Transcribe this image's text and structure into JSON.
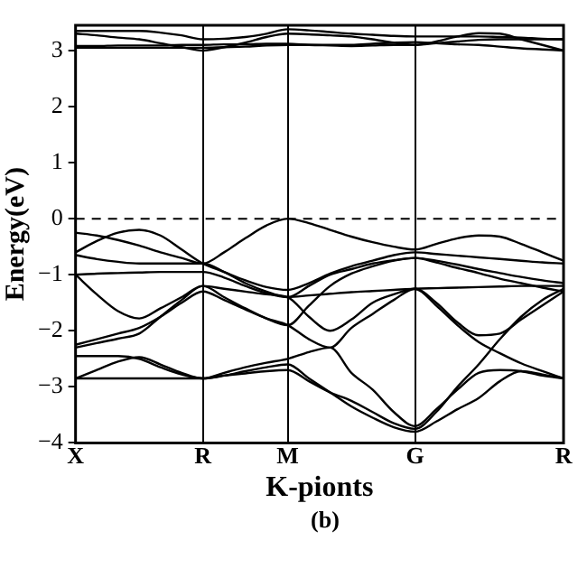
{
  "chart_data": {
    "type": "line",
    "xlabel": "K-pionts",
    "ylabel": "Energy(eV)",
    "annotations": [
      "(b)"
    ],
    "categories": [
      "X",
      null,
      null,
      null,
      null,
      null,
      "R",
      null,
      null,
      null,
      "M",
      null,
      null,
      null,
      null,
      null,
      "G",
      null,
      null,
      null,
      null,
      null,
      null,
      "R"
    ],
    "ylim": [
      -4,
      3.45
    ],
    "yticks": [
      -4,
      -3,
      -2,
      -1,
      0,
      1,
      2,
      3
    ],
    "grid": "x",
    "legend": false,
    "marker": "none",
    "line_style": "solid",
    "ref_lines": [
      {
        "axis": "y",
        "value": 0,
        "line_style": "dashed",
        "color": "#000000"
      }
    ],
    "series": [
      {
        "color": "#000000",
        "values": [
          3.35,
          3.35,
          3.35,
          3.35,
          3.32,
          3.27,
          3.2,
          3.21,
          3.24,
          3.3,
          3.38,
          3.36,
          3.33,
          3.3,
          3.28,
          3.26,
          3.25,
          3.25,
          3.25,
          3.25,
          3.24,
          3.23,
          3.21,
          3.2
        ]
      },
      {
        "color": "#000000",
        "values": [
          3.3,
          3.27,
          3.23,
          3.2,
          3.13,
          3.06,
          3.0,
          3.06,
          3.14,
          3.24,
          3.3,
          3.29,
          3.27,
          3.25,
          3.2,
          3.14,
          3.1,
          3.16,
          3.25,
          3.31,
          3.3,
          3.2,
          3.1,
          3.0
        ]
      },
      {
        "color": "#000000",
        "values": [
          3.08,
          3.08,
          3.09,
          3.09,
          3.09,
          3.1,
          3.1,
          3.11,
          3.11,
          3.12,
          3.12,
          3.1,
          3.09,
          3.08,
          3.09,
          3.1,
          3.1,
          3.13,
          3.16,
          3.19,
          3.2,
          3.2,
          3.2,
          3.2
        ]
      },
      {
        "color": "#000000",
        "values": [
          3.05,
          3.05,
          3.05,
          3.05,
          3.05,
          3.05,
          3.05,
          3.06,
          3.07,
          3.09,
          3.1,
          3.1,
          3.1,
          3.1,
          3.12,
          3.14,
          3.15,
          3.13,
          3.11,
          3.1,
          3.07,
          3.04,
          3.02,
          3.0
        ]
      },
      {
        "color": "#000000",
        "values": [
          -0.25,
          -0.3,
          -0.38,
          -0.48,
          -0.6,
          -0.7,
          -0.8,
          -0.6,
          -0.35,
          -0.12,
          0,
          -0.08,
          -0.2,
          -0.32,
          -0.42,
          -0.5,
          -0.55,
          -0.45,
          -0.35,
          -0.3,
          -0.32,
          -0.45,
          -0.6,
          -0.75
        ]
      },
      {
        "color": "#000000",
        "values": [
          -0.6,
          -0.4,
          -0.25,
          -0.2,
          -0.3,
          -0.55,
          -0.8,
          -0.95,
          -1.1,
          -1.22,
          -1.27,
          -1.15,
          -0.98,
          -0.85,
          -0.75,
          -0.65,
          -0.6,
          -0.63,
          -0.66,
          -0.69,
          -0.72,
          -0.75,
          -0.78,
          -0.8
        ]
      },
      {
        "color": "#000000",
        "values": [
          -0.65,
          -0.72,
          -0.77,
          -0.8,
          -0.8,
          -0.8,
          -0.8,
          -0.95,
          -1.15,
          -1.3,
          -1.4,
          -1.2,
          -1.0,
          -0.9,
          -0.8,
          -0.74,
          -0.7,
          -0.75,
          -0.82,
          -0.9,
          -0.97,
          -1.04,
          -1.1,
          -1.15
        ]
      },
      {
        "color": "#000000",
        "values": [
          -1.0,
          -0.98,
          -0.97,
          -0.96,
          -0.95,
          -0.95,
          -0.95,
          -1.05,
          -1.2,
          -1.33,
          -1.4,
          -1.37,
          -1.34,
          -1.31,
          -1.29,
          -1.27,
          -1.25,
          -1.24,
          -1.23,
          -1.22,
          -1.21,
          -1.2,
          -1.2,
          -1.2
        ]
      },
      {
        "color": "#000000",
        "values": [
          -1.0,
          -1.35,
          -1.65,
          -1.78,
          -1.6,
          -1.4,
          -1.2,
          -1.4,
          -1.6,
          -1.78,
          -1.9,
          -1.55,
          -1.2,
          -0.98,
          -0.85,
          -0.75,
          -0.7,
          -0.78,
          -0.88,
          -0.97,
          -1.07,
          -1.15,
          -1.23,
          -1.3
        ]
      },
      {
        "color": "#000000",
        "values": [
          -2.25,
          -2.15,
          -2.05,
          -1.95,
          -1.75,
          -1.5,
          -1.3,
          -1.45,
          -1.62,
          -1.78,
          -1.9,
          -2.15,
          -2.3,
          -1.95,
          -1.7,
          -1.45,
          -1.25,
          -1.5,
          -1.85,
          -2.08,
          -2.05,
          -1.8,
          -1.55,
          -1.3
        ]
      },
      {
        "color": "#000000",
        "values": [
          -2.3,
          -2.22,
          -2.14,
          -2.05,
          -1.75,
          -1.45,
          -1.2,
          -1.25,
          -1.3,
          -1.35,
          -1.4,
          -1.75,
          -2.0,
          -1.8,
          -1.5,
          -1.35,
          -1.25,
          -1.55,
          -1.9,
          -2.2,
          -2.4,
          -2.58,
          -2.72,
          -2.85
        ]
      },
      {
        "color": "#000000",
        "values": [
          -2.45,
          -2.45,
          -2.45,
          -2.5,
          -2.65,
          -2.78,
          -2.85,
          -2.75,
          -2.65,
          -2.57,
          -2.5,
          -2.38,
          -2.3,
          -2.75,
          -3.05,
          -3.45,
          -3.7,
          -3.4,
          -3.05,
          -2.75,
          -2.7,
          -2.72,
          -2.8,
          -2.85
        ]
      },
      {
        "color": "#000000",
        "values": [
          -2.85,
          -2.7,
          -2.55,
          -2.47,
          -2.6,
          -2.75,
          -2.85,
          -2.8,
          -2.76,
          -2.72,
          -2.7,
          -2.9,
          -3.1,
          -3.25,
          -3.45,
          -3.65,
          -3.75,
          -3.45,
          -3.0,
          -2.6,
          -2.15,
          -1.75,
          -1.45,
          -1.25
        ]
      },
      {
        "color": "#000000",
        "values": [
          -2.85,
          -2.85,
          -2.85,
          -2.85,
          -2.85,
          -2.85,
          -2.85,
          -2.8,
          -2.72,
          -2.65,
          -2.6,
          -2.85,
          -3.1,
          -3.35,
          -3.55,
          -3.72,
          -3.8,
          -3.62,
          -3.4,
          -3.2,
          -2.9,
          -2.72,
          -2.78,
          -2.85
        ]
      }
    ]
  }
}
